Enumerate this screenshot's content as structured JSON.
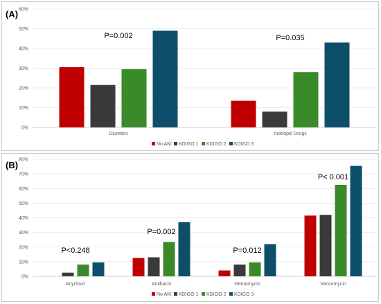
{
  "colors": {
    "No AKI": "#c00000",
    "KDIGO 1": "#3a3a3a",
    "KDIGO 2": "#3a8a2a",
    "KDIGO 3": "#0d4f6b"
  },
  "chart_data": [
    {
      "type": "bar",
      "panel_label": "(A)",
      "categories": [
        "Diuretics",
        "Inotropic Drugs"
      ],
      "series": [
        {
          "name": "No AKI",
          "values": [
            30.5,
            13.5
          ]
        },
        {
          "name": "KDIGO 1",
          "values": [
            21.5,
            8
          ]
        },
        {
          "name": "KDIGO 2",
          "values": [
            29.5,
            28
          ]
        },
        {
          "name": "KDIGO 3",
          "values": [
            49,
            43
          ]
        }
      ],
      "p_values": [
        "P=0.002",
        "P=0.035"
      ],
      "yticks": [
        "0%",
        "10%",
        "20%",
        "30%",
        "40%",
        "50%",
        "60%"
      ],
      "ylim": [
        0,
        60
      ],
      "ystep": 10,
      "legend_position": "bottom",
      "grid": true
    },
    {
      "type": "bar",
      "panel_label": "(B)",
      "categories": [
        "Acyclovir",
        "Amikacin",
        "Gentamycin",
        "Vancomycin"
      ],
      "series": [
        {
          "name": "No AKI",
          "values": [
            0,
            12.5,
            4,
            41.5
          ]
        },
        {
          "name": "KDIGO 1",
          "values": [
            2.5,
            13,
            8,
            42
          ]
        },
        {
          "name": "KDIGO 2",
          "values": [
            8,
            23.5,
            9.5,
            62.5
          ]
        },
        {
          "name": "KDIGO 3",
          "values": [
            9.5,
            37,
            22,
            75.5
          ]
        }
      ],
      "p_values": [
        "P<0.248",
        "P=0.002",
        "P=0.012",
        "P< 0.001"
      ],
      "yticks": [
        "0%",
        "10%",
        "20%",
        "30%",
        "40%",
        "50%",
        "60%",
        "70%",
        "80%"
      ],
      "ylim": [
        0,
        80
      ],
      "ystep": 10,
      "legend_position": "bottom",
      "grid": true
    }
  ]
}
